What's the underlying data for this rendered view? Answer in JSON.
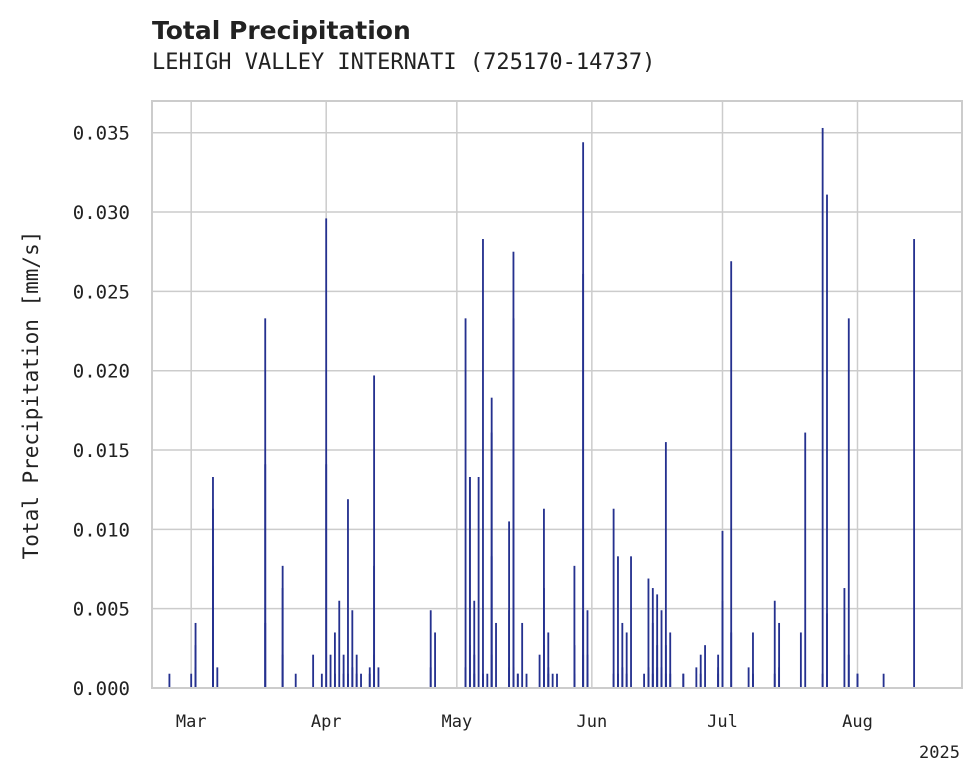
{
  "chart_data": {
    "type": "bar",
    "title": "Total Precipitation",
    "subtitle": "LEHIGH VALLEY INTERNATI (725170-14737)",
    "xlabel": "",
    "ylabel": "Total Precipitation [mm/s]",
    "xlim": [
      "2025-02-20",
      "2025-08-25"
    ],
    "ylim": [
      0,
      0.037
    ],
    "yticks": [
      0.0,
      0.005,
      0.01,
      0.015,
      0.02,
      0.025,
      0.03,
      0.035
    ],
    "ytick_labels": [
      "0.000",
      "0.005",
      "0.010",
      "0.015",
      "0.020",
      "0.025",
      "0.030",
      "0.035"
    ],
    "xticks": [
      "2025-03-01",
      "2025-04-01",
      "2025-05-01",
      "2025-06-01",
      "2025-07-01",
      "2025-08-01"
    ],
    "xtick_labels": [
      "Mar",
      "Apr",
      "May",
      "Jun",
      "Jul",
      "Aug"
    ],
    "x_offset_label": "2025",
    "grid": true,
    "bar_color": "#25318f",
    "series": [
      {
        "x": [
          "2025-02-24",
          "2025-03-01",
          "2025-03-02",
          "2025-03-02",
          "2025-03-02",
          "2025-03-06",
          "2025-03-06",
          "2025-03-06",
          "2025-03-07",
          "2025-03-18",
          "2025-03-18",
          "2025-03-18",
          "2025-03-22",
          "2025-03-22",
          "2025-03-22",
          "2025-03-25",
          "2025-03-29",
          "2025-03-31",
          "2025-04-01",
          "2025-04-01",
          "2025-04-02",
          "2025-04-03",
          "2025-04-03",
          "2025-04-04",
          "2025-04-05",
          "2025-04-05",
          "2025-04-06",
          "2025-04-06",
          "2025-04-07",
          "2025-04-07",
          "2025-04-08",
          "2025-04-08",
          "2025-04-09",
          "2025-04-11",
          "2025-04-11",
          "2025-04-12",
          "2025-04-12",
          "2025-04-12",
          "2025-04-13",
          "2025-04-25",
          "2025-04-25",
          "2025-04-26",
          "2025-05-03",
          "2025-05-03",
          "2025-05-04",
          "2025-05-04",
          "2025-05-04",
          "2025-05-05",
          "2025-05-05",
          "2025-05-05",
          "2025-05-06",
          "2025-05-07",
          "2025-05-07",
          "2025-05-08",
          "2025-05-09",
          "2025-05-09",
          "2025-05-09",
          "2025-05-09",
          "2025-05-10",
          "2025-05-13",
          "2025-05-13",
          "2025-05-13",
          "2025-05-14",
          "2025-05-14",
          "2025-05-14",
          "2025-05-14",
          "2025-05-15",
          "2025-05-15",
          "2025-05-16",
          "2025-05-17",
          "2025-05-20",
          "2025-05-21",
          "2025-05-21",
          "2025-05-21",
          "2025-05-22",
          "2025-05-22",
          "2025-05-22",
          "2025-05-23",
          "2025-05-24",
          "2025-05-28",
          "2025-05-28",
          "2025-05-28",
          "2025-05-30",
          "2025-05-30",
          "2025-05-30",
          "2025-05-30",
          "2025-05-31",
          "2025-05-31",
          "2025-05-31",
          "2025-06-06",
          "2025-06-06",
          "2025-06-07",
          "2025-06-07",
          "2025-06-08",
          "2025-06-08",
          "2025-06-09",
          "2025-06-09",
          "2025-06-10",
          "2025-06-13",
          "2025-06-14",
          "2025-06-14",
          "2025-06-14",
          "2025-06-15",
          "2025-06-15",
          "2025-06-15",
          "2025-06-16",
          "2025-06-16",
          "2025-06-16",
          "2025-06-17",
          "2025-06-17",
          "2025-06-17",
          "2025-06-18",
          "2025-06-18",
          "2025-06-18",
          "2025-06-19",
          "2025-06-19",
          "2025-06-22",
          "2025-06-22",
          "2025-06-25",
          "2025-06-26",
          "2025-06-26",
          "2025-06-27",
          "2025-06-30",
          "2025-06-30",
          "2025-06-30",
          "2025-07-01",
          "2025-07-01",
          "2025-07-03",
          "2025-07-03",
          "2025-07-07",
          "2025-07-08",
          "2025-07-08",
          "2025-07-13",
          "2025-07-13",
          "2025-07-14",
          "2025-07-14",
          "2025-07-19",
          "2025-07-20",
          "2025-07-24",
          "2025-07-24",
          "2025-07-25",
          "2025-07-25",
          "2025-07-29",
          "2025-07-30",
          "2025-07-30",
          "2025-08-01",
          "2025-08-01",
          "2025-08-07",
          "2025-08-14"
        ],
        "values": [
          0.0009,
          0.0009,
          0.0041,
          0.0027,
          0.0013,
          0.0133,
          0.0113,
          0.0077,
          0.0013,
          0.0233,
          0.0141,
          0.0041,
          0.0077,
          0.0063,
          0.0021,
          0.0009,
          0.0021,
          0.0009,
          0.0296,
          0.0141,
          0.0021,
          0.0035,
          0.0009,
          0.0055,
          0.0009,
          0.0021,
          0.0119,
          0.0009,
          0.0049,
          0.0013,
          0.0021,
          0.0009,
          0.0009,
          0.0013,
          0.0009,
          0.0021,
          0.0197,
          0.0077,
          0.0013,
          0.0013,
          0.0049,
          0.0035,
          0.0233,
          0.0013,
          0.0133,
          0.0133,
          0.0027,
          0.0021,
          0.0009,
          0.0055,
          0.0133,
          0.0283,
          0.0009,
          0.0009,
          0.0021,
          0.0161,
          0.0183,
          0.0083,
          0.0041,
          0.0013,
          0.0105,
          0.0049,
          0.0233,
          0.0275,
          0.0013,
          0.0009,
          0.0009,
          0.0009,
          0.0041,
          0.0009,
          0.0021,
          0.0113,
          0.0063,
          0.0027,
          0.0035,
          0.0013,
          0.0009,
          0.0009,
          0.0009,
          0.0009,
          0.0077,
          0.0027,
          0.0021,
          0.0049,
          0.0261,
          0.0344,
          0.0049,
          0.0021,
          0.0009,
          0.0113,
          0.0009,
          0.0083,
          0.0009,
          0.0013,
          0.0041,
          0.0035,
          0.0009,
          0.0083,
          0.0009,
          0.0069,
          0.0013,
          0.0009,
          0.0063,
          0.0041,
          0.0009,
          0.0059,
          0.0013,
          0.0027,
          0.0049,
          0.0013,
          0.0009,
          0.0155,
          0.0027,
          0.0009,
          0.0009,
          0.0035,
          0.0009,
          0.0009,
          0.0013,
          0.0021,
          0.0009,
          0.0027,
          0.0013,
          0.0009,
          0.0021,
          0.0055,
          0.0099,
          0.0035,
          0.0269,
          0.0013,
          0.0009,
          0.0035,
          0.0055,
          0.0009,
          0.0041,
          0.0013,
          0.0035,
          0.0161,
          0.0353,
          0.0009,
          0.0047,
          0.0311,
          0.0063,
          0.0233,
          0.0021,
          0.0009,
          0.0009,
          0.0009,
          0.0283
        ]
      }
    ]
  }
}
